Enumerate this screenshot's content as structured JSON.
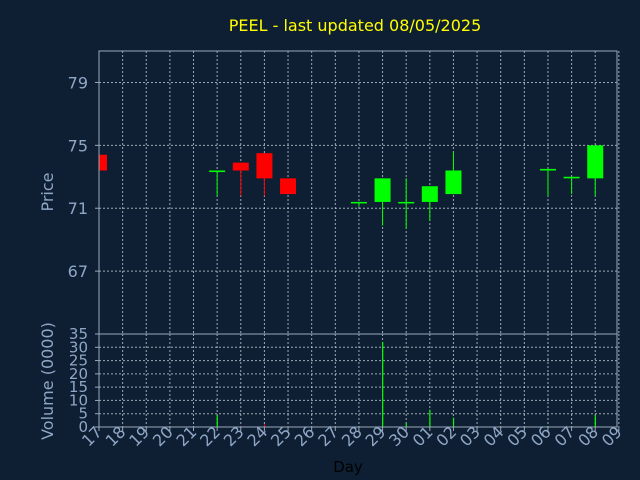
{
  "chart_data": [
    {
      "type": "candlestick",
      "title": "PEEL - last updated 08/05/2025",
      "ylabel": "Price",
      "ylim": [
        63,
        81
      ],
      "yticks": [
        67,
        71,
        75,
        79
      ],
      "grid": true,
      "up_color": "#00ff00",
      "down_color": "#ff0000",
      "x": [
        "17",
        "18",
        "19",
        "20",
        "21",
        "22",
        "23",
        "24",
        "25",
        "26",
        "27",
        "28",
        "29",
        "30",
        "01",
        "02",
        "03",
        "04",
        "05",
        "06",
        "07",
        "08",
        "09"
      ],
      "candles": [
        {
          "day": "17",
          "open": 74.4,
          "high": 74.4,
          "low": 73.2,
          "close": 73.4
        },
        {
          "day": "22",
          "open": 73.3,
          "high": 73.4,
          "low": 71.8,
          "close": 73.4
        },
        {
          "day": "23",
          "open": 73.9,
          "high": 73.9,
          "low": 71.8,
          "close": 73.4
        },
        {
          "day": "24",
          "open": 74.5,
          "high": 74.5,
          "low": 71.8,
          "close": 72.9
        },
        {
          "day": "25",
          "open": 72.9,
          "high": 72.9,
          "low": 71.9,
          "close": 71.9
        },
        {
          "day": "28",
          "open": 71.4,
          "high": 71.4,
          "low": 71.1,
          "close": 71.4
        },
        {
          "day": "29",
          "open": 71.4,
          "high": 72.9,
          "low": 69.9,
          "close": 72.9
        },
        {
          "day": "30",
          "open": 71.4,
          "high": 72.9,
          "low": 69.7,
          "close": 71.4
        },
        {
          "day": "01",
          "open": 71.4,
          "high": 72.4,
          "low": 70.2,
          "close": 72.4
        },
        {
          "day": "02",
          "open": 71.9,
          "high": 74.6,
          "low": 71.9,
          "close": 73.4
        },
        {
          "day": "06",
          "open": 73.4,
          "high": 73.5,
          "low": 71.8,
          "close": 73.5
        },
        {
          "day": "07",
          "open": 72.9,
          "high": 73.0,
          "low": 71.9,
          "close": 73.0
        },
        {
          "day": "08",
          "open": 72.9,
          "high": 75.0,
          "low": 71.8,
          "close": 75.0
        }
      ]
    },
    {
      "type": "bar",
      "ylabel": "Volume (0000)",
      "xlabel": "Day",
      "ylim": [
        0,
        35
      ],
      "yticks": [
        0,
        5,
        10,
        15,
        20,
        25,
        30,
        35
      ],
      "x": [
        "17",
        "18",
        "19",
        "20",
        "21",
        "22",
        "23",
        "24",
        "25",
        "26",
        "27",
        "28",
        "29",
        "30",
        "01",
        "02",
        "03",
        "04",
        "05",
        "06",
        "07",
        "08",
        "09"
      ],
      "bars": [
        {
          "day": "17",
          "value": 0.3,
          "color": "#ff0000"
        },
        {
          "day": "22",
          "value": 4.5,
          "color": "#00ff00"
        },
        {
          "day": "23",
          "value": 0.3,
          "color": "#ff0000"
        },
        {
          "day": "24",
          "value": 1.0,
          "color": "#ff0000"
        },
        {
          "day": "25",
          "value": 0.3,
          "color": "#ff0000"
        },
        {
          "day": "28",
          "value": 0.3,
          "color": "#00ff00"
        },
        {
          "day": "29",
          "value": 32.0,
          "color": "#00ff00"
        },
        {
          "day": "30",
          "value": 1.5,
          "color": "#00ff00"
        },
        {
          "day": "01",
          "value": 6.5,
          "color": "#00ff00"
        },
        {
          "day": "02",
          "value": 3.5,
          "color": "#00ff00"
        },
        {
          "day": "06",
          "value": 0.3,
          "color": "#00ff00"
        },
        {
          "day": "07",
          "value": 0.3,
          "color": "#00ff00"
        },
        {
          "day": "08",
          "value": 4.5,
          "color": "#00ff00"
        }
      ]
    }
  ]
}
